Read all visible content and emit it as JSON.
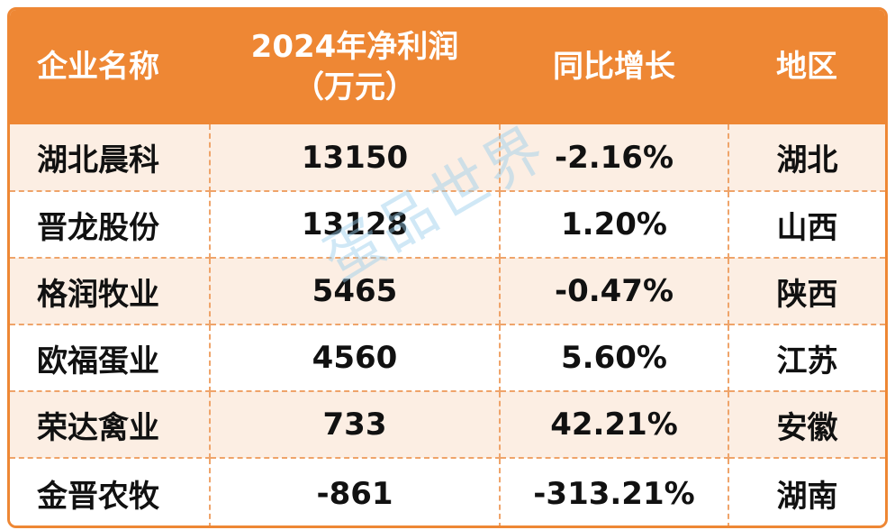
{
  "table": {
    "headers": {
      "company": "企业名称",
      "profit_line1": "2024年净利润",
      "profit_line2": "（万元）",
      "growth": "同比增长",
      "region": "地区"
    },
    "rows": [
      {
        "company": "湖北晨科",
        "profit": "13150",
        "growth": "-2.16%",
        "region": "湖北"
      },
      {
        "company": "晋龙股份",
        "profit": "13128",
        "growth": "1.20%",
        "region": "山西"
      },
      {
        "company": "格润牧业",
        "profit": "5465",
        "growth": "-0.47%",
        "region": "陕西"
      },
      {
        "company": "欧福蛋业",
        "profit": "4560",
        "growth": "5.60%",
        "region": "江苏"
      },
      {
        "company": "荣达禽业",
        "profit": "733",
        "growth": "42.21%",
        "region": "安徽"
      },
      {
        "company": "金晋农牧",
        "profit": "-861",
        "growth": "-313.21%",
        "region": "湖南"
      }
    ]
  },
  "watermark": "蛋品世界",
  "colors": {
    "header_bg": "#EE8734",
    "stripe_bg": "#FCEEE3",
    "divider": "#EFA46A",
    "watermark": "#96CDEB"
  }
}
